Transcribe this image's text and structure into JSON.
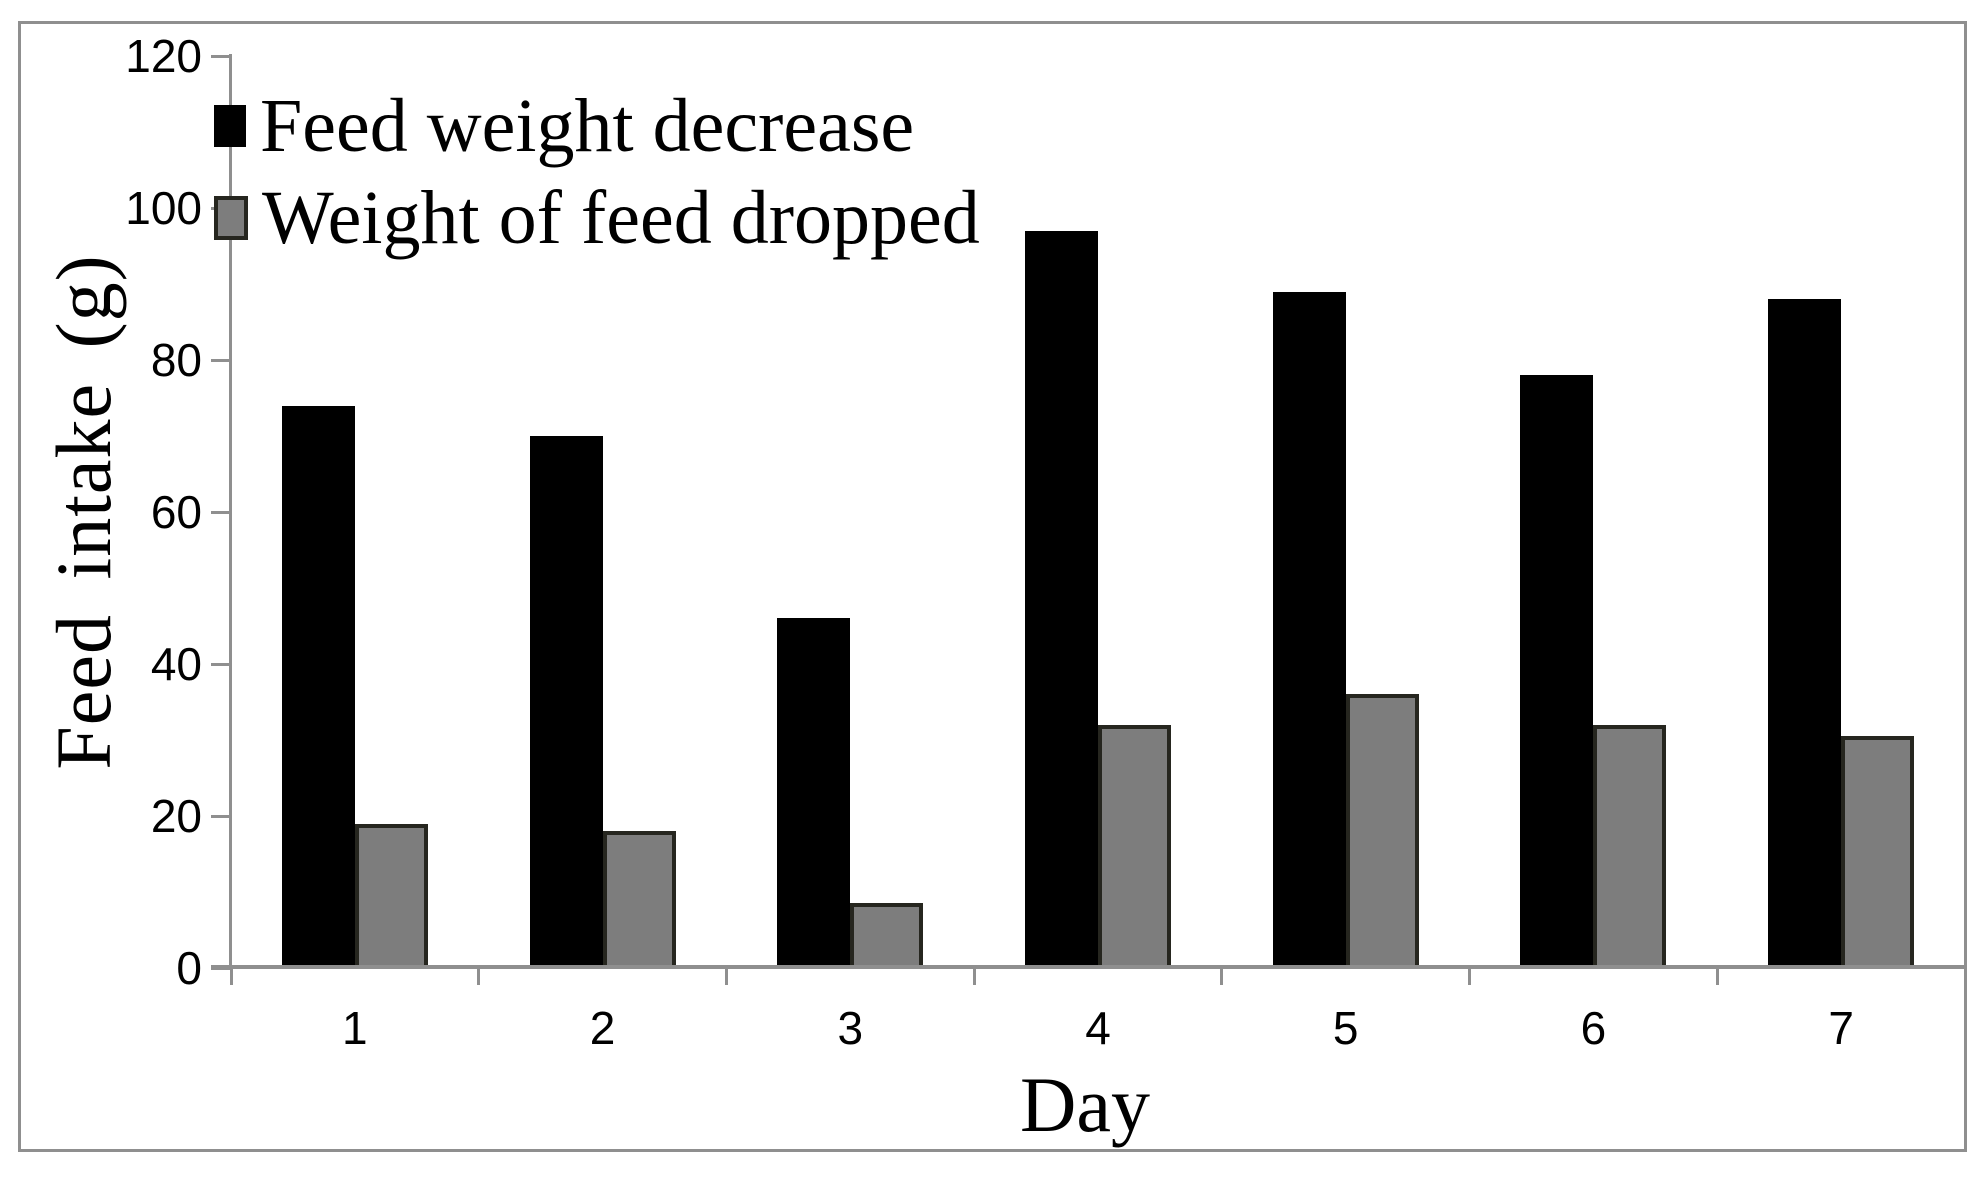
{
  "figure": {
    "background_color": "#ffffff",
    "border_color": "#8f8f8f"
  },
  "axes": {
    "y_label": "Feed intake (g)",
    "x_label": "Day",
    "y_ticks": [
      0,
      20,
      40,
      60,
      80,
      100,
      120
    ],
    "x_tick_labels": [
      "1",
      "2",
      "3",
      "4",
      "5",
      "6",
      "7"
    ],
    "axis_color": "#8f8f8f"
  },
  "legend": {
    "items": [
      {
        "label": "Feed weight decrease",
        "fill": "#000000",
        "outline": "none"
      },
      {
        "label": "Weight of feed dropped",
        "fill": "#7d7d7d",
        "outline": "#26261f"
      }
    ]
  },
  "chart_data": {
    "type": "bar",
    "title": "",
    "xlabel": "Day",
    "ylabel": "Feed intake (g)",
    "categories": [
      "1",
      "2",
      "3",
      "4",
      "5",
      "6",
      "7"
    ],
    "series": [
      {
        "name": "Feed weight decrease",
        "color": "#000000",
        "outline": "none",
        "values": [
          74,
          70,
          46,
          97,
          89,
          78,
          88
        ]
      },
      {
        "name": "Weight of feed dropped",
        "color": "#7d7d7d",
        "outline": "#26261f",
        "values": [
          19,
          18,
          8.5,
          32,
          36,
          32,
          30.5
        ]
      }
    ],
    "ylim": [
      0,
      120
    ],
    "y_tick_step": 20,
    "grid": false,
    "legend_position": "upper-left-inside"
  }
}
